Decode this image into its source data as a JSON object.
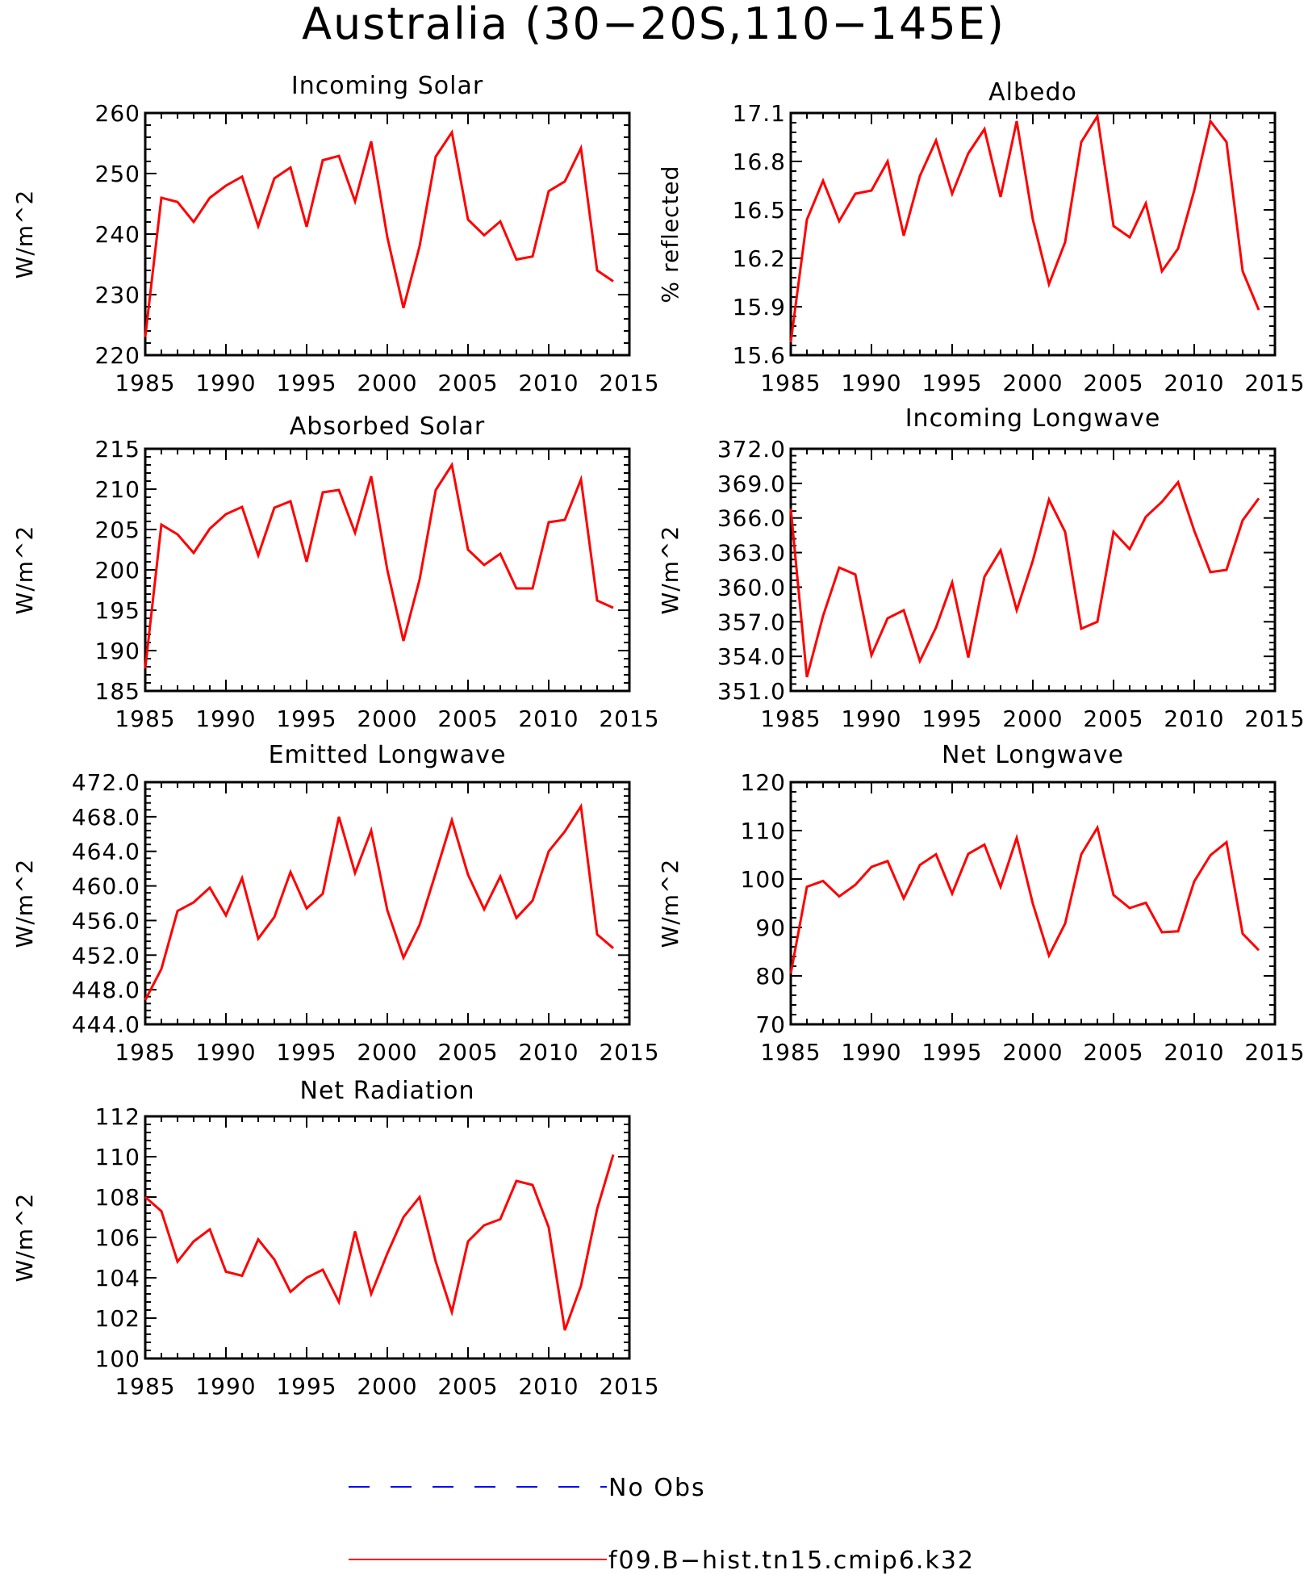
{
  "figure": {
    "title": "Australia (30−20S,110−145E)"
  },
  "legend": {
    "items": [
      {
        "label": "No Obs",
        "color": "#0000ff",
        "style": "dashed"
      },
      {
        "label": "f09.B−hist.tn15.cmip6.k32",
        "color": "#ff0000",
        "style": "solid"
      }
    ]
  },
  "colors": {
    "series": "#ff0000",
    "axes": "#000000"
  },
  "chart_data": [
    {
      "type": "line",
      "title": "Incoming Solar",
      "ylabel": "W/m^2",
      "xlabel": "",
      "xlim": [
        1985,
        2015
      ],
      "ylim": [
        220,
        260
      ],
      "xticks": [
        1985,
        1990,
        1995,
        2000,
        2005,
        2010,
        2015
      ],
      "yticks": [
        220,
        230,
        240,
        250,
        260
      ],
      "ytick_labels": [
        "220",
        "230",
        "240",
        "250",
        "260"
      ],
      "series": [
        {
          "name": "f09.B−hist.tn15.cmip6.k32",
          "x": [
            1985,
            1986,
            1987,
            1988,
            1989,
            1990,
            1991,
            1992,
            1993,
            1994,
            1995,
            1996,
            1997,
            1998,
            1999,
            2000,
            2001,
            2002,
            2003,
            2004,
            2005,
            2006,
            2007,
            2008,
            2009,
            2010,
            2011,
            2012,
            2013,
            2014
          ],
          "y": [
            223,
            246,
            245.3,
            242,
            246,
            248,
            249.5,
            241.3,
            249.2,
            251,
            241.2,
            252.2,
            252.9,
            245.4,
            255.3,
            239.5,
            227.8,
            238,
            252.8,
            256.8,
            242.4,
            239.8,
            242.1,
            235.8,
            236.3,
            247.1,
            248.7,
            254.2,
            234,
            232.2
          ]
        }
      ]
    },
    {
      "type": "line",
      "title": "Albedo",
      "ylabel": "% reflected",
      "xlabel": "",
      "xlim": [
        1985,
        2015
      ],
      "ylim": [
        15.6,
        17.1
      ],
      "xticks": [
        1985,
        1990,
        1995,
        2000,
        2005,
        2010,
        2015
      ],
      "yticks": [
        15.6,
        15.9,
        16.2,
        16.5,
        16.8,
        17.1
      ],
      "ytick_labels": [
        "15.6",
        "15.9",
        "16.2",
        "16.5",
        "16.8",
        "17.1"
      ],
      "series": [
        {
          "name": "f09.B−hist.tn15.cmip6.k32",
          "x": [
            1985,
            1986,
            1987,
            1988,
            1989,
            1990,
            1991,
            1992,
            1993,
            1994,
            1995,
            1996,
            1997,
            1998,
            1999,
            2000,
            2001,
            2002,
            2003,
            2004,
            2005,
            2006,
            2007,
            2008,
            2009,
            2010,
            2011,
            2012,
            2013,
            2014
          ],
          "y": [
            15.68,
            16.44,
            16.68,
            16.43,
            16.6,
            16.62,
            16.8,
            16.34,
            16.71,
            16.93,
            16.6,
            16.85,
            17.0,
            16.58,
            17.05,
            16.44,
            16.04,
            16.3,
            16.92,
            17.08,
            16.4,
            16.33,
            16.54,
            16.12,
            16.26,
            16.62,
            17.05,
            16.92,
            16.12,
            15.88
          ]
        }
      ]
    },
    {
      "type": "line",
      "title": "Absorbed Solar",
      "ylabel": "W/m^2",
      "xlabel": "",
      "xlim": [
        1985,
        2015
      ],
      "ylim": [
        185,
        215
      ],
      "xticks": [
        1985,
        1990,
        1995,
        2000,
        2005,
        2010,
        2015
      ],
      "yticks": [
        185,
        190,
        195,
        200,
        205,
        210,
        215
      ],
      "ytick_labels": [
        "185",
        "190",
        "195",
        "200",
        "205",
        "210",
        "215"
      ],
      "series": [
        {
          "name": "f09.B−hist.tn15.cmip6.k32",
          "x": [
            1985,
            1986,
            1987,
            1988,
            1989,
            1990,
            1991,
            1992,
            1993,
            1994,
            1995,
            1996,
            1997,
            1998,
            1999,
            2000,
            2001,
            2002,
            2003,
            2004,
            2005,
            2006,
            2007,
            2008,
            2009,
            2010,
            2011,
            2012,
            2013,
            2014
          ],
          "y": [
            187.8,
            205.6,
            204.4,
            202.1,
            205.1,
            206.9,
            207.8,
            201.8,
            207.7,
            208.5,
            201,
            209.6,
            209.9,
            204.6,
            211.6,
            200,
            191.2,
            198.8,
            209.9,
            213,
            202.5,
            200.6,
            202,
            197.7,
            197.7,
            205.9,
            206.2,
            211.2,
            196.2,
            195.3
          ]
        }
      ]
    },
    {
      "type": "line",
      "title": "Incoming Longwave",
      "ylabel": "W/m^2",
      "xlabel": "",
      "xlim": [
        1985,
        2015
      ],
      "ylim": [
        351,
        372
      ],
      "xticks": [
        1985,
        1990,
        1995,
        2000,
        2005,
        2010,
        2015
      ],
      "yticks": [
        351,
        354,
        357,
        360,
        363,
        366,
        369,
        372
      ],
      "ytick_labels": [
        "351.0",
        "354.0",
        "357.0",
        "360.0",
        "363.0",
        "366.0",
        "369.0",
        "372.0"
      ],
      "series": [
        {
          "name": "f09.B−hist.tn15.cmip6.k32",
          "x": [
            1985,
            1986,
            1987,
            1988,
            1989,
            1990,
            1991,
            1992,
            1993,
            1994,
            1995,
            1996,
            1997,
            1998,
            1999,
            2000,
            2001,
            2002,
            2003,
            2004,
            2005,
            2006,
            2007,
            2008,
            2009,
            2010,
            2011,
            2012,
            2013,
            2014
          ],
          "y": [
            366.8,
            352.2,
            357.5,
            361.7,
            361.1,
            354.1,
            357.3,
            358,
            353.6,
            356.5,
            360.4,
            353.9,
            360.9,
            363.2,
            358,
            362.3,
            367.6,
            364.8,
            356.4,
            357,
            364.8,
            363.3,
            366.1,
            367.4,
            369.1,
            364.9,
            361.3,
            361.5,
            365.8,
            367.7
          ]
        }
      ]
    },
    {
      "type": "line",
      "title": "Emitted Longwave",
      "ylabel": "W/m^2",
      "xlabel": "",
      "xlim": [
        1985,
        2015
      ],
      "ylim": [
        444,
        472
      ],
      "xticks": [
        1985,
        1990,
        1995,
        2000,
        2005,
        2010,
        2015
      ],
      "yticks": [
        444,
        448,
        452,
        456,
        460,
        464,
        468,
        472
      ],
      "ytick_labels": [
        "444.0",
        "448.0",
        "452.0",
        "456.0",
        "460.0",
        "464.0",
        "468.0",
        "472.0"
      ],
      "series": [
        {
          "name": "f09.B−hist.tn15.cmip6.k32",
          "x": [
            1985,
            1986,
            1987,
            1988,
            1989,
            1990,
            1991,
            1992,
            1993,
            1994,
            1995,
            1996,
            1997,
            1998,
            1999,
            2000,
            2001,
            2002,
            2003,
            2004,
            2005,
            2006,
            2007,
            2008,
            2009,
            2010,
            2011,
            2012,
            2013,
            2014
          ],
          "y": [
            446.8,
            450.4,
            457.1,
            458.1,
            459.8,
            456.6,
            460.9,
            453.9,
            456.4,
            461.6,
            457.4,
            459.1,
            468,
            461.5,
            466.4,
            457.2,
            451.7,
            455.5,
            461.5,
            467.6,
            461.3,
            457.3,
            461.1,
            456.3,
            458.3,
            464,
            466.3,
            469.2,
            454.4,
            452.8
          ]
        }
      ]
    },
    {
      "type": "line",
      "title": "Net Longwave",
      "ylabel": "W/m^2",
      "xlabel": "",
      "xlim": [
        1985,
        2015
      ],
      "ylim": [
        70,
        120
      ],
      "xticks": [
        1985,
        1990,
        1995,
        2000,
        2005,
        2010,
        2015
      ],
      "yticks": [
        70,
        80,
        90,
        100,
        110,
        120
      ],
      "ytick_labels": [
        "70",
        "80",
        "90",
        "100",
        "110",
        "120"
      ],
      "series": [
        {
          "name": "f09.B−hist.tn15.cmip6.k32",
          "x": [
            1985,
            1986,
            1987,
            1988,
            1989,
            1990,
            1991,
            1992,
            1993,
            1994,
            1995,
            1996,
            1997,
            1998,
            1999,
            2000,
            2001,
            2002,
            2003,
            2004,
            2005,
            2006,
            2007,
            2008,
            2009,
            2010,
            2011,
            2012,
            2013,
            2014
          ],
          "y": [
            80.5,
            98.4,
            99.6,
            96.4,
            98.8,
            102.5,
            103.7,
            96,
            102.9,
            105.1,
            97,
            105.2,
            107.1,
            98.4,
            108.5,
            94.9,
            84.2,
            90.8,
            105.1,
            110.6,
            96.7,
            94,
            95.1,
            89,
            89.2,
            99.5,
            104.9,
            107.6,
            88.7,
            85.3
          ]
        }
      ]
    },
    {
      "type": "line",
      "title": "Net Radiation",
      "ylabel": "W/m^2",
      "xlabel": "",
      "xlim": [
        1985,
        2015
      ],
      "ylim": [
        100,
        112
      ],
      "xticks": [
        1985,
        1990,
        1995,
        2000,
        2005,
        2010,
        2015
      ],
      "yticks": [
        100,
        102,
        104,
        106,
        108,
        110,
        112
      ],
      "ytick_labels": [
        "100",
        "102",
        "104",
        "106",
        "108",
        "110",
        "112"
      ],
      "series": [
        {
          "name": "f09.B−hist.tn15.cmip6.k32",
          "x": [
            1985,
            1986,
            1987,
            1988,
            1989,
            1990,
            1991,
            1992,
            1993,
            1994,
            1995,
            1996,
            1997,
            1998,
            1999,
            2000,
            2001,
            2002,
            2003,
            2004,
            2005,
            2006,
            2007,
            2008,
            2009,
            2010,
            2011,
            2012,
            2013,
            2014
          ],
          "y": [
            108,
            107.3,
            104.8,
            105.8,
            106.4,
            104.3,
            104.1,
            105.9,
            104.9,
            103.3,
            104,
            104.4,
            102.8,
            106.3,
            103.2,
            105.2,
            107,
            108,
            104.8,
            102.3,
            105.8,
            106.6,
            106.9,
            108.8,
            108.6,
            106.5,
            101.4,
            103.6,
            107.4,
            110.1
          ]
        }
      ]
    }
  ]
}
